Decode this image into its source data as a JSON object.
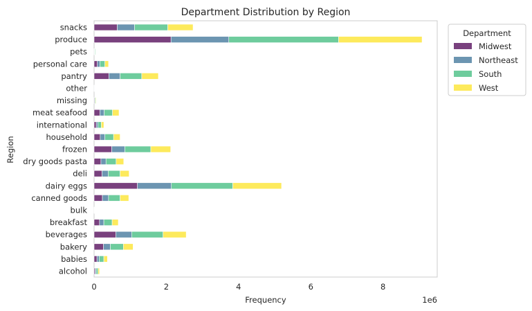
{
  "chart_data": {
    "type": "bar",
    "orientation": "horizontal",
    "stacked": true,
    "title": "Department Distribution by Region",
    "xlabel": "Frequency",
    "ylabel": "Region",
    "x_scale_label": "1e6",
    "xlim": [
      0,
      9.5
    ],
    "x_ticks": [
      0,
      2,
      4,
      6,
      8
    ],
    "grid": false,
    "legend": {
      "title": "Department",
      "placement": "outside-top-right"
    },
    "categories": [
      "alcohol",
      "babies",
      "bakery",
      "beverages",
      "breakfast",
      "bulk",
      "canned goods",
      "dairy eggs",
      "deli",
      "dry goods pasta",
      "frozen",
      "household",
      "international",
      "meat seafood",
      "missing",
      "other",
      "pantry",
      "personal care",
      "pets",
      "produce",
      "snacks"
    ],
    "series": [
      {
        "name": "Midwest",
        "color": "#6a2c70",
        "values": [
          0.03,
          0.08,
          0.26,
          0.6,
          0.15,
          0.005,
          0.23,
          1.2,
          0.22,
          0.19,
          0.49,
          0.17,
          0.06,
          0.16,
          0.015,
          0.008,
          0.41,
          0.09,
          0.01,
          2.13,
          0.64
        ]
      },
      {
        "name": "Northeast",
        "color": "#5c8aa8",
        "values": [
          0.03,
          0.06,
          0.19,
          0.44,
          0.12,
          0.005,
          0.17,
          0.94,
          0.17,
          0.14,
          0.36,
          0.13,
          0.05,
          0.12,
          0.01,
          0.007,
          0.31,
          0.07,
          0.01,
          1.6,
          0.48
        ]
      },
      {
        "name": "South",
        "color": "#5ec792",
        "values": [
          0.05,
          0.13,
          0.36,
          0.87,
          0.23,
          0.01,
          0.32,
          1.7,
          0.33,
          0.28,
          0.72,
          0.24,
          0.09,
          0.23,
          0.02,
          0.01,
          0.6,
          0.14,
          0.02,
          3.04,
          0.92
        ]
      },
      {
        "name": "West",
        "color": "#fde84a",
        "values": [
          0.04,
          0.1,
          0.27,
          0.64,
          0.17,
          0.005,
          0.24,
          1.35,
          0.25,
          0.21,
          0.55,
          0.18,
          0.07,
          0.18,
          0.015,
          0.008,
          0.46,
          0.1,
          0.01,
          2.31,
          0.7
        ]
      }
    ]
  }
}
